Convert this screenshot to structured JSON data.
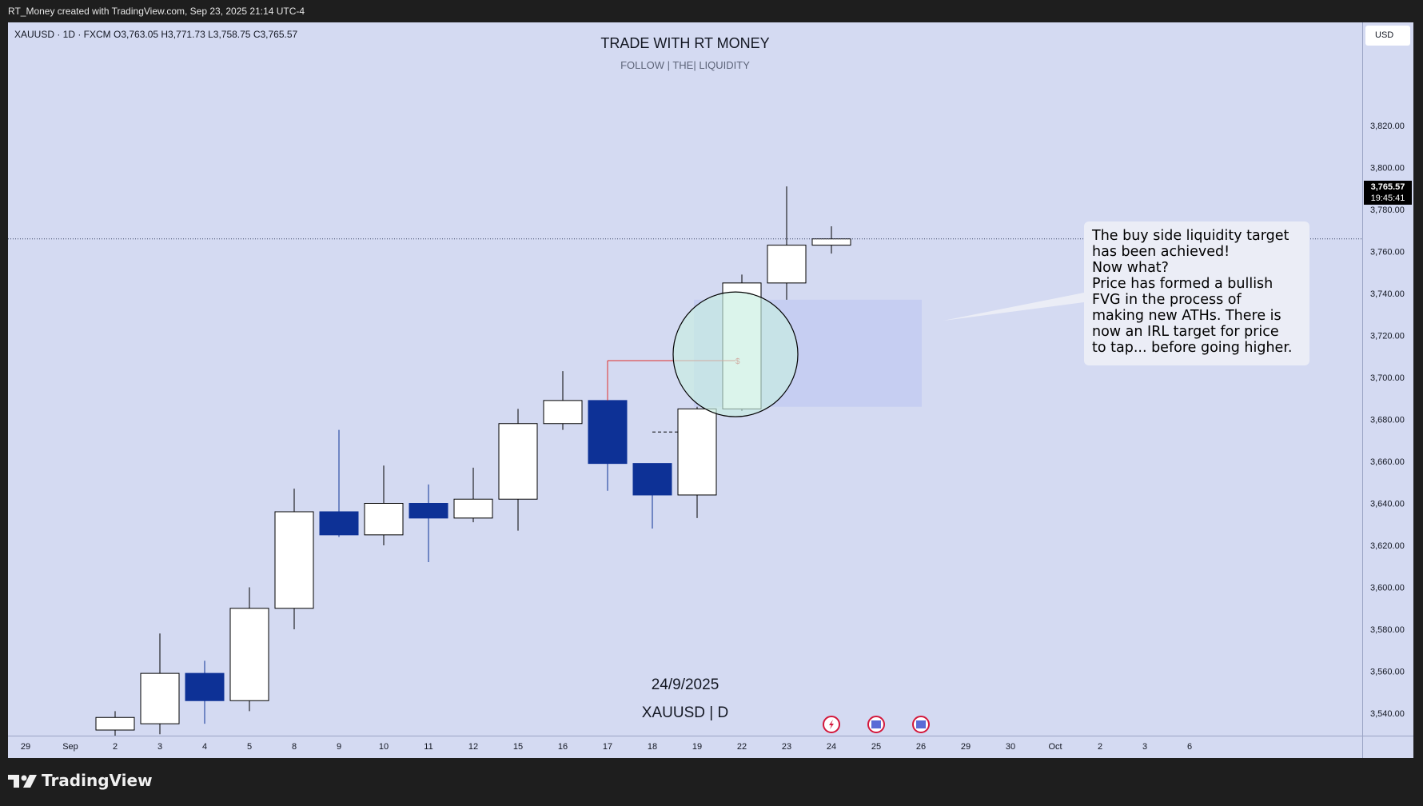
{
  "header": {
    "credit": "RT_Money created with TradingView.com, Sep 23, 2025 21:14 UTC-4"
  },
  "symbol_line": "XAUUSD · 1D · FXCM   O3,763.05   H3,771.73   L3,758.75   C3,765.57",
  "currency": "USD",
  "last_price": {
    "price": "3,765.57",
    "countdown": "19:45:41"
  },
  "watermark": {
    "title": "TRADE WITH RT MONEY",
    "subtitle": "FOLLOW   |   THE|   LIQUIDITY",
    "date": "24/9/2025",
    "symbol": "XAUUSD | D"
  },
  "annotation": {
    "text": "The buy side liquidity target\nhas been achieved!\nNow what?\nPrice has formed a bullish\nFVG in the process of\nmaking new ATHs. There is\nnow an IRL target for price\nto tap... before going higher.",
    "marker": "$"
  },
  "brand": "TradingView",
  "colors": {
    "background": "#d4daf2",
    "bull": "#ffffff",
    "bear": "#0d3196",
    "fvg_zone": "#c3cbf2",
    "marker_line": "#e0302c",
    "note_bg": "#ebedf6"
  },
  "chart_data": {
    "type": "candlestick",
    "title": "XAUUSD · 1D · FXCM",
    "ylim": [
      3535,
      3835
    ],
    "y_ticks": [
      3540,
      3560,
      3580,
      3600,
      3620,
      3640,
      3660,
      3680,
      3700,
      3720,
      3740,
      3760,
      3780,
      3800,
      3820
    ],
    "y_tick_labels": [
      "3,540.00",
      "3,560.00",
      "3,580.00",
      "3,600.00",
      "3,620.00",
      "3,640.00",
      "3,660.00",
      "3,680.00",
      "3,700.00",
      "3,720.00",
      "3,740.00",
      "3,760.00",
      "3,780.00",
      "3,800.00",
      "3,820.00"
    ],
    "x_labels": [
      "29",
      "Sep",
      "2",
      "3",
      "4",
      "5",
      "8",
      "9",
      "10",
      "11",
      "12",
      "15",
      "16",
      "17",
      "18",
      "19",
      "22",
      "23",
      "24",
      "25",
      "26",
      "29",
      "30",
      "Oct",
      "2",
      "3",
      "6"
    ],
    "candles": [
      {
        "date": "2",
        "open": 3532,
        "high": 3541,
        "low": 3525,
        "close": 3538
      },
      {
        "date": "3",
        "open": 3535,
        "high": 3578,
        "low": 3530,
        "close": 3559
      },
      {
        "date": "4",
        "open": 3559,
        "high": 3565,
        "low": 3535,
        "close": 3546
      },
      {
        "date": "5",
        "open": 3546,
        "high": 3600,
        "low": 3541,
        "close": 3590
      },
      {
        "date": "8",
        "open": 3590,
        "high": 3647,
        "low": 3580,
        "close": 3636
      },
      {
        "date": "9",
        "open": 3636,
        "high": 3675,
        "low": 3624,
        "close": 3625
      },
      {
        "date": "10",
        "open": 3625,
        "high": 3658,
        "low": 3620,
        "close": 3640
      },
      {
        "date": "11",
        "open": 3640,
        "high": 3649,
        "low": 3612,
        "close": 3633
      },
      {
        "date": "12",
        "open": 3633,
        "high": 3657,
        "low": 3631,
        "close": 3642
      },
      {
        "date": "15",
        "open": 3642,
        "high": 3685,
        "low": 3627,
        "close": 3678
      },
      {
        "date": "16",
        "open": 3678,
        "high": 3703,
        "low": 3675,
        "close": 3689
      },
      {
        "date": "17",
        "open": 3689,
        "high": 3707,
        "low": 3646,
        "close": 3659
      },
      {
        "date": "18",
        "open": 3659,
        "high": 3659,
        "low": 3628,
        "close": 3644
      },
      {
        "date": "19",
        "open": 3644,
        "high": 3686,
        "low": 3633,
        "close": 3685
      },
      {
        "date": "22",
        "open": 3685,
        "high": 3749,
        "low": 3684,
        "close": 3745
      },
      {
        "date": "23",
        "open": 3745,
        "high": 3791,
        "low": 3737,
        "close": 3763
      },
      {
        "date": "24",
        "open": 3763,
        "high": 3772,
        "low": 3759,
        "close": 3766
      }
    ],
    "fvg_zone": {
      "from": "22",
      "to": "26",
      "low": 3686,
      "high": 3737
    },
    "liquidity_level": {
      "price": 3708,
      "from": "17",
      "to": "22"
    },
    "dashed_level": {
      "price": 3674,
      "from": "18",
      "to": "19"
    },
    "event_icons": [
      "24",
      "25",
      "26"
    ]
  }
}
